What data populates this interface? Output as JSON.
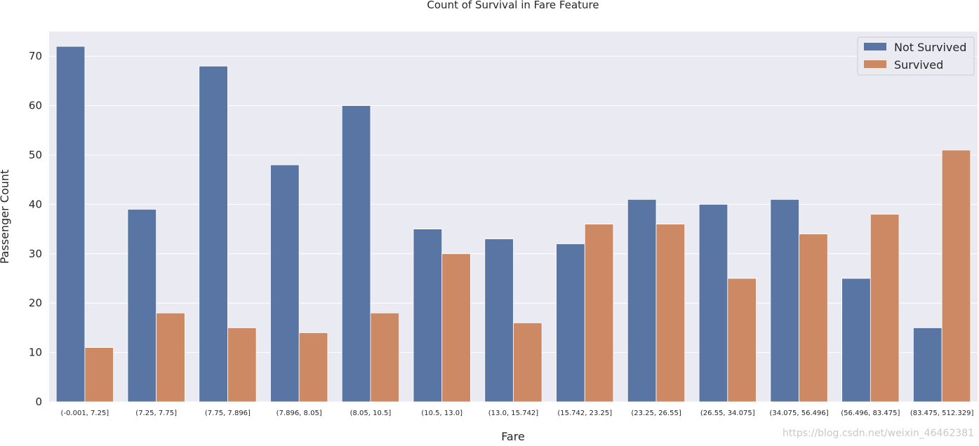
{
  "chart_data": {
    "type": "bar",
    "title": "Count of Survival in Fare Feature",
    "xlabel": "Fare",
    "ylabel": "Passenger Count",
    "ylim": [
      0,
      75
    ],
    "yticks": [
      0,
      10,
      20,
      30,
      40,
      50,
      60,
      70
    ],
    "grid": true,
    "legend_position": "top-right",
    "categories": [
      "(-0.001, 7.25]",
      "(7.25, 7.75]",
      "(7.75, 7.896]",
      "(7.896, 8.05]",
      "(8.05, 10.5]",
      "(10.5, 13.0]",
      "(13.0, 15.742]",
      "(15.742, 23.25]",
      "(23.25, 26.55]",
      "(26.55, 34.075]",
      "(34.075, 56.496]",
      "(56.496, 83.475]",
      "(83.475, 512.329]"
    ],
    "series": [
      {
        "name": "Not Survived",
        "color": "#5975a4",
        "values": [
          72,
          39,
          68,
          48,
          60,
          35,
          33,
          32,
          41,
          40,
          41,
          25,
          15
        ]
      },
      {
        "name": "Survived",
        "color": "#cc8963",
        "values": [
          11,
          18,
          15,
          14,
          18,
          30,
          16,
          36,
          36,
          25,
          34,
          38,
          51
        ]
      }
    ]
  },
  "colors": {
    "plot_background": "#eaeaf2",
    "grid": "#ffffff"
  },
  "watermark": "https://blog.csdn.net/weixin_46462381"
}
